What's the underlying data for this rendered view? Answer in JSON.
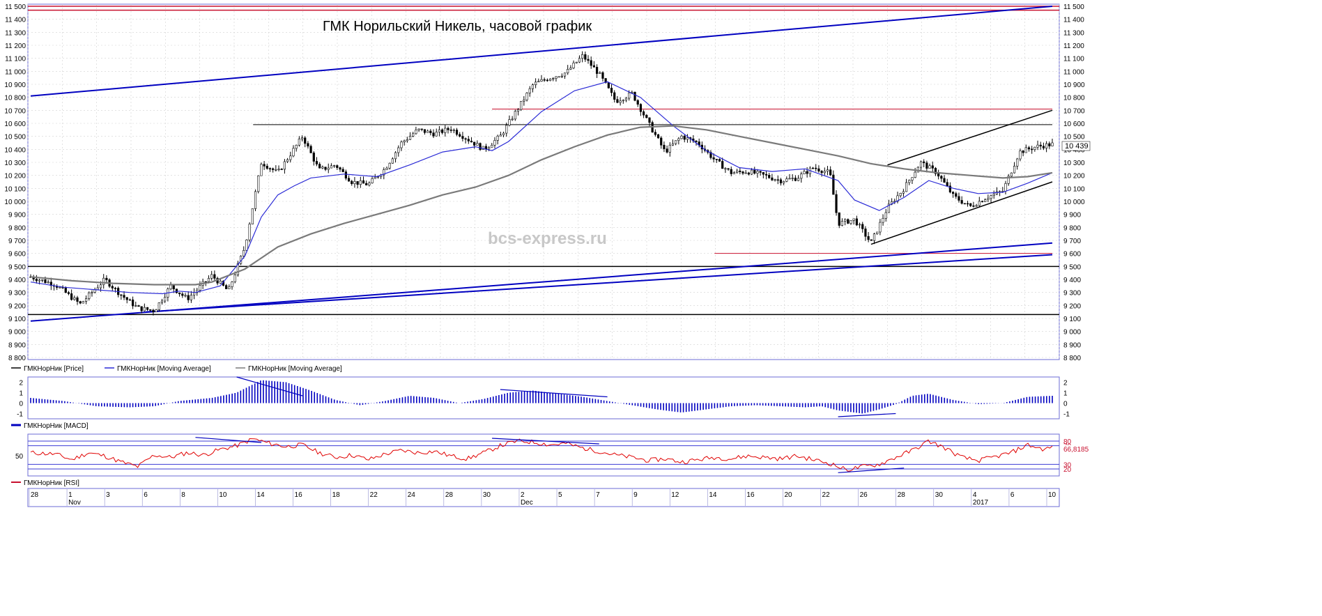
{
  "chart_data": {
    "type": "candlestick",
    "title": "ГМК Норильский Никель, часовой график",
    "watermark": "bcs-express.ru",
    "price_axis": {
      "ylim": [
        8800,
        11500
      ],
      "ticks": [
        11500,
        11400,
        11300,
        11200,
        11100,
        11000,
        10900,
        10800,
        10700,
        10600,
        10500,
        10400,
        10300,
        10200,
        10100,
        10000,
        9900,
        9800,
        9700,
        9600,
        9500,
        9400,
        9300,
        9200,
        9100,
        9000,
        8900,
        8800
      ],
      "tick_labels": [
        "11 500",
        "11 400",
        "11 300",
        "11 200",
        "11 100",
        "11 000",
        "10 900",
        "10 800",
        "10 700",
        "10 600",
        "10 500",
        "10 400",
        "10 300",
        "10 200",
        "10 100",
        "10 000",
        "9 900",
        "9 800",
        "9 700",
        "9 600",
        "9 500",
        "9 400",
        "9 300",
        "9 200",
        "9 100",
        "9 000",
        "8 900",
        "8 800"
      ],
      "last_price_label": "10 439",
      "last_price": 10439
    },
    "price_series": [
      {
        "name": "ГМКНорНик [Price]",
        "color": "#000000",
        "points": [
          [
            0,
            9420
          ],
          [
            3,
            9360
          ],
          [
            6,
            9210
          ],
          [
            9,
            9400
          ],
          [
            11,
            9280
          ],
          [
            13,
            9180
          ],
          [
            15,
            9160
          ],
          [
            17,
            9350
          ],
          [
            19,
            9250
          ],
          [
            22,
            9430
          ],
          [
            24,
            9310
          ],
          [
            26,
            9650
          ],
          [
            28,
            10300
          ],
          [
            30,
            10220
          ],
          [
            33,
            10500
          ],
          [
            35,
            10240
          ],
          [
            37,
            10280
          ],
          [
            39,
            10150
          ],
          [
            41,
            10130
          ],
          [
            43,
            10250
          ],
          [
            45,
            10450
          ],
          [
            47,
            10550
          ],
          [
            49,
            10520
          ],
          [
            51,
            10560
          ],
          [
            53,
            10480
          ],
          [
            55,
            10400
          ],
          [
            57,
            10500
          ],
          [
            59,
            10700
          ],
          [
            61,
            10900
          ],
          [
            63,
            10950
          ],
          [
            65,
            10990
          ],
          [
            67,
            11120
          ],
          [
            69,
            10980
          ],
          [
            71,
            10770
          ],
          [
            73,
            10830
          ],
          [
            75,
            10600
          ],
          [
            77,
            10380
          ],
          [
            79,
            10500
          ],
          [
            81,
            10450
          ],
          [
            83,
            10320
          ],
          [
            85,
            10220
          ],
          [
            87,
            10230
          ],
          [
            89,
            10200
          ],
          [
            91,
            10160
          ],
          [
            93,
            10180
          ],
          [
            95,
            10260
          ],
          [
            97,
            10220
          ],
          [
            98,
            9830
          ],
          [
            100,
            9860
          ],
          [
            102,
            9680
          ],
          [
            104,
            9950
          ],
          [
            106,
            10100
          ],
          [
            108,
            10300
          ],
          [
            110,
            10220
          ],
          [
            112,
            10040
          ],
          [
            114,
            9960
          ],
          [
            116,
            10030
          ],
          [
            118,
            10080
          ],
          [
            120,
            10380
          ],
          [
            122,
            10420
          ],
          [
            124,
            10439
          ]
        ]
      },
      {
        "name": "ГМКНорНик [Moving Average]",
        "color": "#2b2bd6",
        "points": [
          [
            0,
            9380
          ],
          [
            4,
            9340
          ],
          [
            8,
            9320
          ],
          [
            12,
            9300
          ],
          [
            16,
            9290
          ],
          [
            18,
            9310
          ],
          [
            20,
            9300
          ],
          [
            23,
            9350
          ],
          [
            26,
            9580
          ],
          [
            28,
            9880
          ],
          [
            30,
            10050
          ],
          [
            32,
            10120
          ],
          [
            34,
            10180
          ],
          [
            38,
            10210
          ],
          [
            42,
            10190
          ],
          [
            46,
            10280
          ],
          [
            50,
            10380
          ],
          [
            54,
            10420
          ],
          [
            56,
            10390
          ],
          [
            58,
            10460
          ],
          [
            62,
            10690
          ],
          [
            66,
            10850
          ],
          [
            70,
            10920
          ],
          [
            74,
            10800
          ],
          [
            78,
            10580
          ],
          [
            82,
            10390
          ],
          [
            86,
            10260
          ],
          [
            90,
            10230
          ],
          [
            94,
            10250
          ],
          [
            98,
            10160
          ],
          [
            100,
            10010
          ],
          [
            103,
            9930
          ],
          [
            106,
            10030
          ],
          [
            109,
            10160
          ],
          [
            112,
            10100
          ],
          [
            115,
            10060
          ],
          [
            118,
            10070
          ],
          [
            121,
            10140
          ],
          [
            124,
            10220
          ]
        ]
      },
      {
        "name": "ГМКНорНик [Moving Average]",
        "color": "#7a7a7a",
        "points": [
          [
            0,
            9420
          ],
          [
            5,
            9390
          ],
          [
            10,
            9370
          ],
          [
            15,
            9360
          ],
          [
            20,
            9360
          ],
          [
            22,
            9380
          ],
          [
            26,
            9480
          ],
          [
            30,
            9650
          ],
          [
            34,
            9750
          ],
          [
            38,
            9830
          ],
          [
            42,
            9900
          ],
          [
            46,
            9970
          ],
          [
            50,
            10050
          ],
          [
            54,
            10110
          ],
          [
            58,
            10200
          ],
          [
            62,
            10320
          ],
          [
            66,
            10420
          ],
          [
            70,
            10510
          ],
          [
            74,
            10570
          ],
          [
            78,
            10580
          ],
          [
            82,
            10550
          ],
          [
            86,
            10500
          ],
          [
            90,
            10450
          ],
          [
            94,
            10400
          ],
          [
            98,
            10350
          ],
          [
            102,
            10290
          ],
          [
            106,
            10250
          ],
          [
            110,
            10220
          ],
          [
            114,
            10200
          ],
          [
            118,
            10180
          ],
          [
            121,
            10190
          ],
          [
            124,
            10220
          ]
        ]
      }
    ],
    "annotation_lines": [
      {
        "color": "#c8102e",
        "kind": "horizontal",
        "y": 11500
      },
      {
        "color": "#c8102e",
        "kind": "horizontal",
        "y": 11470
      },
      {
        "color": "#0000c0",
        "kind": "trend",
        "from": [
          0,
          10810
        ],
        "to": [
          124,
          11500
        ]
      },
      {
        "color": "#c8102e",
        "kind": "segment",
        "from": [
          56,
          10710
        ],
        "to": [
          124,
          10710
        ]
      },
      {
        "color": "#000000",
        "kind": "segment",
        "from": [
          27,
          10590
        ],
        "to": [
          124,
          10590
        ]
      },
      {
        "color": "#c8102e",
        "kind": "segment",
        "from": [
          83,
          9600
        ],
        "to": [
          124,
          9600
        ]
      },
      {
        "color": "#000000",
        "kind": "horizontal",
        "y": 9500
      },
      {
        "color": "#000000",
        "kind": "horizontal",
        "y": 9130
      },
      {
        "color": "#0000c0",
        "kind": "trend",
        "from": [
          0,
          9080
        ],
        "to": [
          124,
          9680
        ]
      },
      {
        "color": "#0000c0",
        "kind": "trend",
        "from": [
          14,
          9150
        ],
        "to": [
          124,
          9590
        ]
      },
      {
        "color": "#000000",
        "kind": "trend",
        "from": [
          102,
          9670
        ],
        "to": [
          124,
          10150
        ]
      },
      {
        "color": "#000000",
        "kind": "trend",
        "from": [
          104,
          10280
        ],
        "to": [
          124,
          10700
        ]
      }
    ],
    "legend_price": [
      "ГМКНорНик [Price]",
      "ГМКНорНик [Moving Average]",
      "ГМКНорНик [Moving Average]"
    ],
    "macd": {
      "name": "ГМКНорНик [MACD]",
      "ylim": [
        -1.5,
        2.5
      ],
      "ticks": [
        2,
        1,
        0,
        -1
      ],
      "tick_labels": [
        "2",
        "1",
        "0",
        "-1"
      ],
      "points": [
        [
          0,
          0.5
        ],
        [
          4,
          0.2
        ],
        [
          8,
          -0.3
        ],
        [
          12,
          -0.4
        ],
        [
          15,
          -0.3
        ],
        [
          18,
          0.2
        ],
        [
          22,
          0.5
        ],
        [
          25,
          1.0
        ],
        [
          28,
          2.2
        ],
        [
          31,
          2.0
        ],
        [
          34,
          1.2
        ],
        [
          37,
          0.3
        ],
        [
          40,
          -0.2
        ],
        [
          43,
          0.2
        ],
        [
          46,
          0.7
        ],
        [
          49,
          0.5
        ],
        [
          52,
          0.0
        ],
        [
          55,
          0.4
        ],
        [
          58,
          1.0
        ],
        [
          61,
          1.2
        ],
        [
          64,
          0.9
        ],
        [
          67,
          0.6
        ],
        [
          70,
          0.2
        ],
        [
          73,
          -0.2
        ],
        [
          76,
          -0.6
        ],
        [
          79,
          -0.9
        ],
        [
          82,
          -0.6
        ],
        [
          85,
          -0.3
        ],
        [
          88,
          -0.2
        ],
        [
          91,
          -0.3
        ],
        [
          94,
          -0.4
        ],
        [
          96,
          -0.3
        ],
        [
          98,
          -0.7
        ],
        [
          101,
          -1.0
        ],
        [
          103,
          -0.6
        ],
        [
          105,
          -0.1
        ],
        [
          107,
          0.7
        ],
        [
          109,
          0.9
        ],
        [
          112,
          0.3
        ],
        [
          115,
          -0.1
        ],
        [
          118,
          0.0
        ],
        [
          121,
          0.6
        ],
        [
          124,
          0.7
        ]
      ],
      "divergence_lines": [
        {
          "from": [
            25,
            2.5
          ],
          "to": [
            33,
            0.7
          ]
        },
        {
          "from": [
            57,
            1.3
          ],
          "to": [
            70,
            0.6
          ]
        },
        {
          "from": [
            98,
            -1.3
          ],
          "to": [
            105,
            -1.0
          ]
        }
      ]
    },
    "rsi": {
      "name": "ГМКНорНик [RSI]",
      "ylim": [
        5,
        95
      ],
      "levels": [
        80,
        70,
        30,
        20
      ],
      "ticks_right": [
        "80",
        "70",
        "30",
        "20"
      ],
      "tick_left": "50",
      "last_value_label": "66,8185",
      "points": [
        [
          0,
          55
        ],
        [
          3,
          52
        ],
        [
          5,
          40
        ],
        [
          7,
          55
        ],
        [
          9,
          48
        ],
        [
          11,
          35
        ],
        [
          13,
          25
        ],
        [
          15,
          50
        ],
        [
          17,
          45
        ],
        [
          19,
          55
        ],
        [
          21,
          50
        ],
        [
          23,
          62
        ],
        [
          25,
          70
        ],
        [
          27,
          85
        ],
        [
          29,
          75
        ],
        [
          31,
          68
        ],
        [
          33,
          72
        ],
        [
          35,
          55
        ],
        [
          37,
          45
        ],
        [
          39,
          50
        ],
        [
          41,
          40
        ],
        [
          43,
          52
        ],
        [
          45,
          60
        ],
        [
          47,
          55
        ],
        [
          49,
          58
        ],
        [
          51,
          48
        ],
        [
          53,
          42
        ],
        [
          55,
          55
        ],
        [
          57,
          70
        ],
        [
          59,
          80
        ],
        [
          61,
          78
        ],
        [
          63,
          72
        ],
        [
          65,
          75
        ],
        [
          67,
          65
        ],
        [
          69,
          58
        ],
        [
          71,
          50
        ],
        [
          73,
          45
        ],
        [
          75,
          38
        ],
        [
          77,
          42
        ],
        [
          79,
          35
        ],
        [
          81,
          40
        ],
        [
          83,
          45
        ],
        [
          85,
          42
        ],
        [
          87,
          48
        ],
        [
          89,
          45
        ],
        [
          91,
          42
        ],
        [
          93,
          48
        ],
        [
          95,
          40
        ],
        [
          97,
          32
        ],
        [
          99,
          18
        ],
        [
          101,
          25
        ],
        [
          103,
          30
        ],
        [
          105,
          45
        ],
        [
          107,
          60
        ],
        [
          109,
          80
        ],
        [
          111,
          65
        ],
        [
          113,
          45
        ],
        [
          115,
          38
        ],
        [
          117,
          46
        ],
        [
          119,
          55
        ],
        [
          121,
          72
        ],
        [
          123,
          62
        ],
        [
          124,
          66.8
        ]
      ],
      "divergence_lines": [
        {
          "from": [
            20,
            88
          ],
          "to": [
            28,
            77
          ]
        },
        {
          "from": [
            56,
            86
          ],
          "to": [
            69,
            74
          ]
        },
        {
          "from": [
            98,
            12
          ],
          "to": [
            106,
            22
          ]
        }
      ]
    },
    "date_axis": {
      "day_labels": [
        "28",
        "1",
        "3",
        "6",
        "8",
        "10",
        "14",
        "16",
        "18",
        "22",
        "24",
        "28",
        "30",
        "2",
        "5",
        "7",
        "9",
        "12",
        "14",
        "16",
        "20",
        "22",
        "26",
        "28",
        "30",
        "4",
        "6",
        "10"
      ],
      "month_labels": [
        "Nov",
        "Dec",
        "2017"
      ]
    }
  }
}
